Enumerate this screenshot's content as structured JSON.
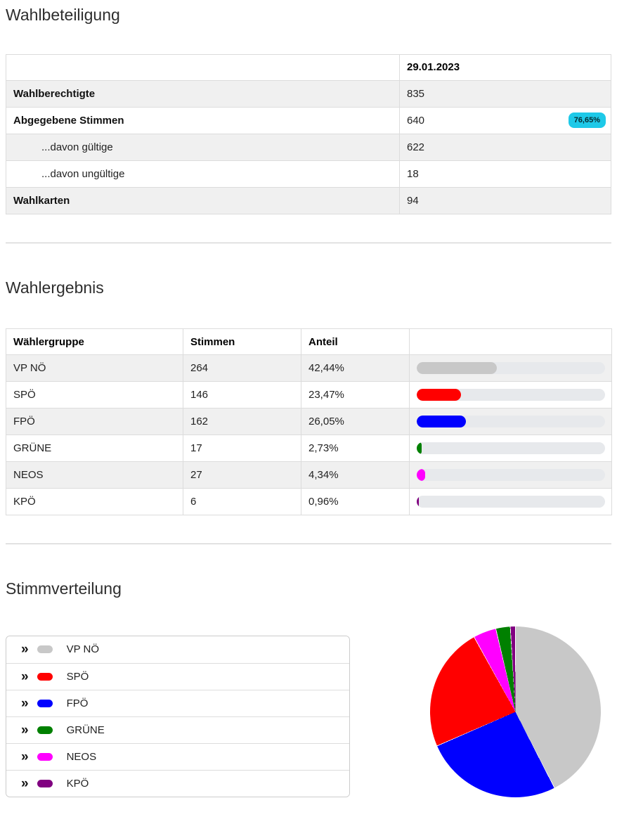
{
  "turnout": {
    "title": "Wahlbeteiligung",
    "date_header": "29.01.2023",
    "badge_color": "#1ec9e8",
    "rows": [
      {
        "label": "Wahlberechtigte",
        "value": "835",
        "bold": true,
        "indent": false,
        "badge": null
      },
      {
        "label": "Abgegebene Stimmen",
        "value": "640",
        "bold": true,
        "indent": false,
        "badge": "76,65%"
      },
      {
        "label": "...davon gültige",
        "value": "622",
        "bold": false,
        "indent": true,
        "badge": null
      },
      {
        "label": "...davon ungültige",
        "value": "18",
        "bold": false,
        "indent": true,
        "badge": null
      },
      {
        "label": "Wahlkarten",
        "value": "94",
        "bold": true,
        "indent": false,
        "badge": null
      }
    ]
  },
  "results": {
    "title": "Wahlergebnis",
    "columns": [
      "Wählergruppe",
      "Stimmen",
      "Anteil",
      ""
    ],
    "bar_track_color": "#e7e9ec",
    "rows": [
      {
        "party": "VP NÖ",
        "votes": "264",
        "share": "42,44%",
        "pct": 42.44,
        "color": "#c8c8c8"
      },
      {
        "party": "SPÖ",
        "votes": "146",
        "share": "23,47%",
        "pct": 23.47,
        "color": "#ff0000"
      },
      {
        "party": "FPÖ",
        "votes": "162",
        "share": "26,05%",
        "pct": 26.05,
        "color": "#0000ff"
      },
      {
        "party": "GRÜNE",
        "votes": "17",
        "share": "2,73%",
        "pct": 2.73,
        "color": "#008000"
      },
      {
        "party": "NEOS",
        "votes": "27",
        "share": "4,34%",
        "pct": 4.34,
        "color": "#ff00ff"
      },
      {
        "party": "KPÖ",
        "votes": "6",
        "share": "0,96%",
        "pct": 0.96,
        "color": "#800080"
      }
    ]
  },
  "distribution": {
    "title": "Stimmverteilung",
    "chevron_icon": "»",
    "legend": [
      {
        "label": "VP NÖ",
        "color": "#c8c8c8"
      },
      {
        "label": "SPÖ",
        "color": "#ff0000"
      },
      {
        "label": "FPÖ",
        "color": "#0000ff"
      },
      {
        "label": "GRÜNE",
        "color": "#008000"
      },
      {
        "label": "NEOS",
        "color": "#ff00ff"
      },
      {
        "label": "KPÖ",
        "color": "#800080"
      }
    ]
  },
  "chart_data": {
    "type": "pie",
    "title": "Stimmverteilung",
    "labels": [
      "VP NÖ",
      "SPÖ",
      "FPÖ",
      "GRÜNE",
      "NEOS",
      "KPÖ"
    ],
    "values": [
      264,
      146,
      162,
      17,
      27,
      6
    ],
    "values_pct": [
      42.44,
      23.47,
      26.05,
      2.73,
      4.34,
      0.96
    ],
    "colors": [
      "#c8c8c8",
      "#ff0000",
      "#0000ff",
      "#008000",
      "#ff00ff",
      "#800080"
    ],
    "legend_position": "left",
    "slice_separator_color": "#ffffff",
    "slices_clockwise_from_top": [
      {
        "label": "VP NÖ",
        "pct": 42.44,
        "color": "#c8c8c8"
      },
      {
        "label": "FPÖ",
        "pct": 26.05,
        "color": "#0000ff"
      },
      {
        "label": "SPÖ",
        "pct": 23.47,
        "color": "#ff0000"
      },
      {
        "label": "NEOS",
        "pct": 4.34,
        "color": "#ff00ff"
      },
      {
        "label": "GRÜNE",
        "pct": 2.73,
        "color": "#008000"
      },
      {
        "label": "KPÖ",
        "pct": 0.96,
        "color": "#800080"
      }
    ]
  }
}
